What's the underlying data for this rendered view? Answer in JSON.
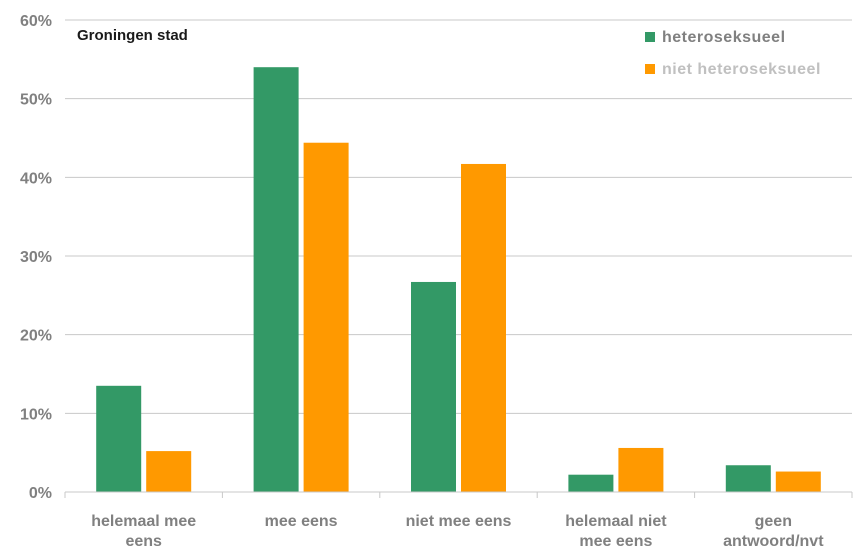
{
  "chart_data": {
    "type": "bar",
    "title": "Groningen stad",
    "xlabel": "",
    "ylabel": "",
    "ylim": [
      0,
      60
    ],
    "y_ticks": [
      "0%",
      "10%",
      "20%",
      "30%",
      "40%",
      "50%",
      "60%"
    ],
    "grid": true,
    "legend_position": "top-right",
    "categories": [
      [
        "helemaal mee",
        "eens"
      ],
      [
        "mee eens"
      ],
      [
        "niet mee eens"
      ],
      [
        "helemaal niet",
        "mee eens"
      ],
      [
        "geen",
        "antwoord/nvt"
      ]
    ],
    "series": [
      {
        "name": "heteroseksueel",
        "color": "#339966",
        "values": [
          13.5,
          54,
          26.7,
          2.2,
          3.4
        ]
      },
      {
        "name": "niet heteroseksueel",
        "color": "#ff9900",
        "values": [
          5.2,
          44.4,
          41.7,
          5.6,
          2.6
        ]
      }
    ],
    "legend_text_colors": [
      "#808080",
      "#c0c0c0"
    ]
  }
}
